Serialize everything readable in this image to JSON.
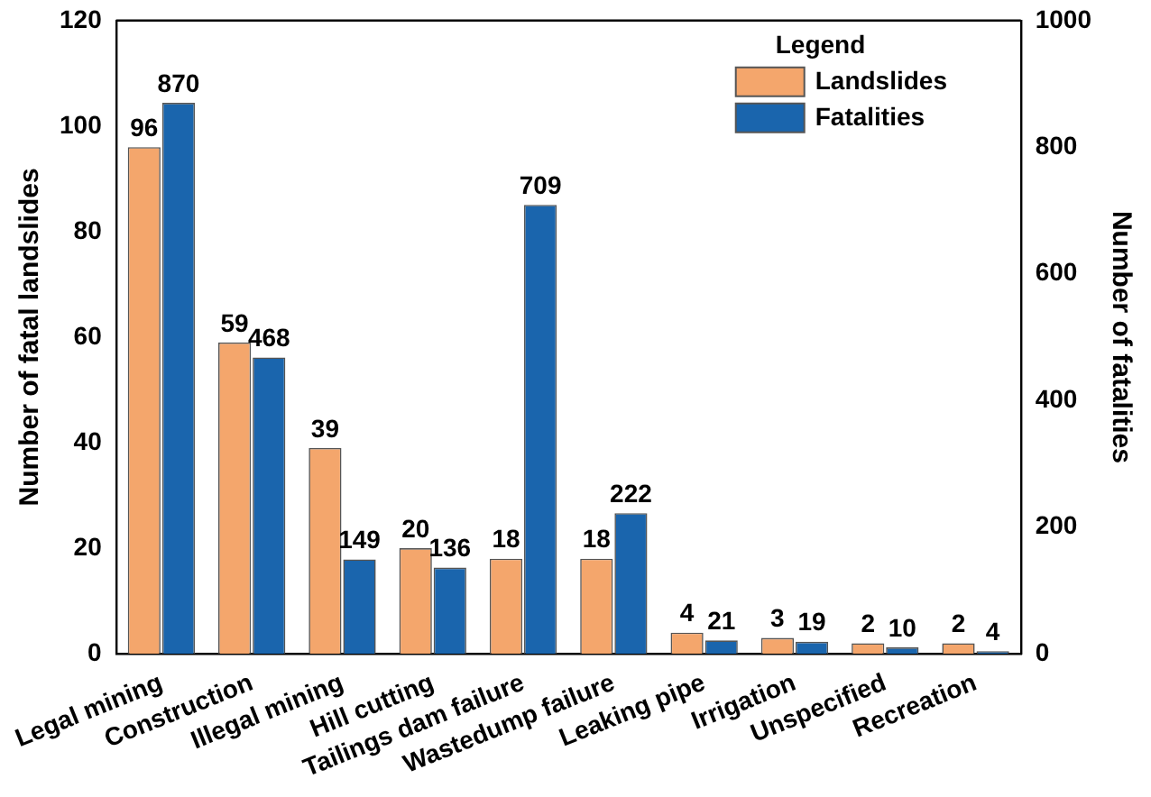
{
  "chart_data": {
    "type": "bar",
    "legend_title": "Legend",
    "ylabel": "Number of fatal landslides",
    "y2label": "Number of fatalities",
    "categories": [
      "Legal mining",
      "Construction",
      "Illegal mining",
      "Hill cutting",
      "Tailings dam failure",
      "Wastedump failure",
      "Leaking pipe",
      "Irrigation",
      "Unspecified",
      "Recreation"
    ],
    "series": [
      {
        "name": "Landslides",
        "color": "#f4a66c",
        "values": [
          96,
          59,
          39,
          20,
          18,
          18,
          4,
          3,
          2,
          2
        ]
      },
      {
        "name": "Fatalities",
        "color": "#1a65ad",
        "axis": "y2",
        "values": [
          870,
          468,
          149,
          136,
          709,
          222,
          21,
          19,
          10,
          4
        ]
      }
    ],
    "ylim": [
      0,
      120
    ],
    "yticks": [
      0,
      20,
      40,
      60,
      80,
      100,
      120
    ],
    "y2lim": [
      0,
      1000
    ],
    "y2ticks": [
      0,
      200,
      400,
      600,
      800,
      1000
    ],
    "data_labels": true,
    "grid": false,
    "legend": "top right"
  }
}
